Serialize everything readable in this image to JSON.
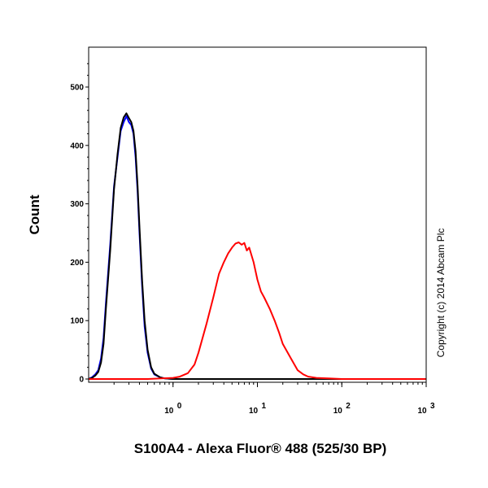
{
  "chart_data": {
    "type": "line",
    "xlabel": "S100A4 - Alexa Fluor® 488 (525/30 BP)",
    "ylabel": "Count",
    "x_scale": "log",
    "xlim": [
      0.1,
      1000
    ],
    "ylim": [
      0,
      580
    ],
    "x_ticks": [
      1,
      10,
      100,
      1000
    ],
    "x_tick_labels": [
      {
        "base": "10",
        "exp": "0"
      },
      {
        "base": "10",
        "exp": "1"
      },
      {
        "base": "10",
        "exp": "2"
      },
      {
        "base": "10",
        "exp": "3"
      }
    ],
    "y_ticks": [
      0,
      100,
      200,
      300,
      400,
      500
    ],
    "y_tick_labels": [
      "0",
      "100",
      "200",
      "300",
      "400",
      "500"
    ],
    "annotation": "Copyright (c) 2014 Abcam Plc",
    "grid": false,
    "series": [
      {
        "color": "#0000ff",
        "x": [
          0.1,
          0.11,
          0.12,
          0.13,
          0.14,
          0.15,
          0.16,
          0.18,
          0.2,
          0.22,
          0.24,
          0.26,
          0.28,
          0.3,
          0.32,
          0.34,
          0.36,
          0.38,
          0.4,
          0.43,
          0.46,
          0.5,
          0.55,
          0.6,
          0.7,
          0.8,
          1.0,
          1000
        ],
        "y": [
          0,
          3,
          8,
          15,
          35,
          70,
          130,
          230,
          330,
          380,
          425,
          440,
          450,
          440,
          435,
          420,
          380,
          320,
          250,
          160,
          90,
          45,
          18,
          8,
          3,
          1,
          0,
          0
        ]
      },
      {
        "color": "#000000",
        "x": [
          0.1,
          0.11,
          0.12,
          0.13,
          0.14,
          0.15,
          0.16,
          0.18,
          0.2,
          0.22,
          0.24,
          0.26,
          0.28,
          0.3,
          0.32,
          0.34,
          0.36,
          0.38,
          0.4,
          0.43,
          0.46,
          0.5,
          0.55,
          0.6,
          0.7,
          0.8,
          1.0,
          1000
        ],
        "y": [
          0,
          2,
          6,
          12,
          28,
          60,
          120,
          220,
          325,
          385,
          430,
          448,
          455,
          447,
          440,
          425,
          390,
          330,
          260,
          170,
          100,
          50,
          20,
          9,
          3,
          1,
          0,
          0
        ]
      },
      {
        "color": "#ff0000",
        "x": [
          0.1,
          0.5,
          1.0,
          1.2,
          1.5,
          1.8,
          2.0,
          2.5,
          3.0,
          3.5,
          4.0,
          4.5,
          5.0,
          5.5,
          6.0,
          6.5,
          7.0,
          7.5,
          8.0,
          9.0,
          10.0,
          11,
          12,
          14,
          16,
          18,
          20,
          25,
          30,
          35,
          40,
          50,
          70,
          100,
          1000
        ],
        "y": [
          0,
          0,
          2,
          4,
          10,
          25,
          45,
          95,
          140,
          180,
          200,
          215,
          225,
          232,
          234,
          230,
          233,
          220,
          225,
          200,
          170,
          150,
          140,
          120,
          100,
          80,
          60,
          35,
          15,
          8,
          4,
          2,
          1,
          0,
          0
        ]
      }
    ]
  }
}
